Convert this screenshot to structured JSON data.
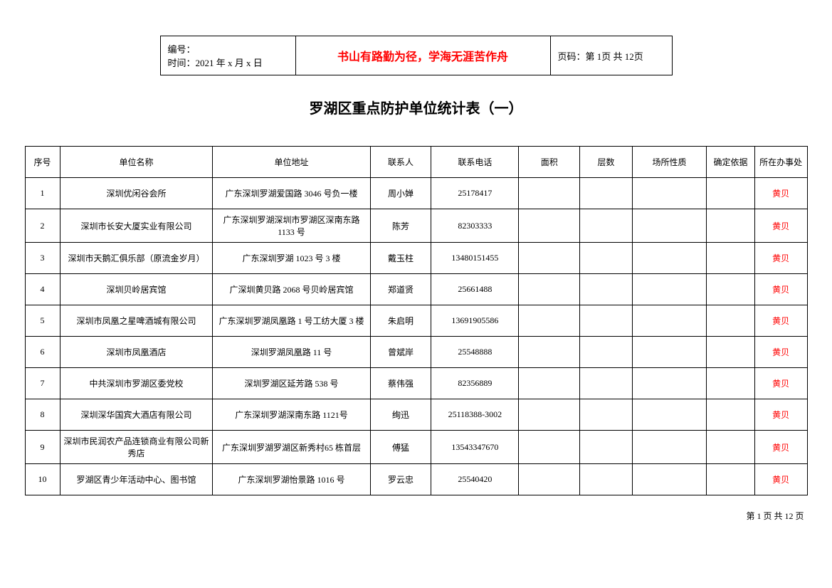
{
  "header": {
    "number_label": "编号：",
    "time_label": "时间：",
    "time_value": "2021 年 x 月 x 日",
    "motto": "书山有路勤为径，学海无涯苦作舟",
    "page_label": "页码：第 1页 共 12页"
  },
  "title": "罗湖区重点防护单位统计表（一）",
  "table": {
    "columns": [
      "序号",
      "单位名称",
      "单位地址",
      "联系人",
      "联系电话",
      "面积",
      "层数",
      "场所性质",
      "确定依据",
      "所在办事处"
    ],
    "rows": [
      {
        "seq": "1",
        "name": "深圳优闲谷会所",
        "addr": "广东深圳罗湖爱国路 3046 号负一楼",
        "contact": "周小婵",
        "phone": "25178417",
        "area": "",
        "floors": "",
        "type": "",
        "basis": "",
        "office": "黄贝"
      },
      {
        "seq": "2",
        "name": "深圳市长安大厦实业有限公司",
        "addr": "广东深圳罗湖深圳市罗湖区深南东路 1133 号",
        "contact": "陈芳",
        "phone": "82303333",
        "area": "",
        "floors": "",
        "type": "",
        "basis": "",
        "office": "黄贝"
      },
      {
        "seq": "3",
        "name": "深圳市天鹅汇俱乐部（原流金岁月）",
        "addr": "广东深圳罗湖 1023 号 3 楼",
        "contact": "戴玉柱",
        "phone": "13480151455",
        "area": "",
        "floors": "",
        "type": "",
        "basis": "",
        "office": "黄贝"
      },
      {
        "seq": "4",
        "name": "深圳贝岭居宾馆",
        "addr": "广深圳黄贝路 2068 号贝岭居宾馆",
        "contact": "郑道贤",
        "phone": "25661488",
        "area": "",
        "floors": "",
        "type": "",
        "basis": "",
        "office": "黄贝"
      },
      {
        "seq": "5",
        "name": "深圳市凤凰之星啤酒城有限公司",
        "addr": "广东深圳罗湖凤凰路 1 号工纺大厦 3 楼",
        "contact": "朱启明",
        "phone": "13691905586",
        "area": "",
        "floors": "",
        "type": "",
        "basis": "",
        "office": "黄贝"
      },
      {
        "seq": "6",
        "name": "深圳市凤凰酒店",
        "addr": "深圳罗湖凤凰路 11 号",
        "contact": "曾斌岸",
        "phone": "25548888",
        "area": "",
        "floors": "",
        "type": "",
        "basis": "",
        "office": "黄贝"
      },
      {
        "seq": "7",
        "name": "中共深圳市罗湖区委党校",
        "addr": "深圳罗湖区延芳路 538 号",
        "contact": "蔡伟强",
        "phone": "82356889",
        "area": "",
        "floors": "",
        "type": "",
        "basis": "",
        "office": "黄贝"
      },
      {
        "seq": "8",
        "name": "深圳深华国宾大酒店有限公司",
        "addr": "广东深圳罗湖深南东路 1121号",
        "contact": "绚迅",
        "phone": "25118388-3002",
        "area": "",
        "floors": "",
        "type": "",
        "basis": "",
        "office": "黄贝"
      },
      {
        "seq": "9",
        "name": "深圳市民润农产品连锁商业有限公司新秀店",
        "addr": "广东深圳罗湖罗湖区新秀村65 栋首层",
        "contact": "傅猛",
        "phone": "13543347670",
        "area": "",
        "floors": "",
        "type": "",
        "basis": "",
        "office": "黄贝"
      },
      {
        "seq": "10",
        "name": "罗湖区青少年活动中心、图书馆",
        "addr": "广东深圳罗湖怡景路 1016 号",
        "contact": "罗云忠",
        "phone": "25540420",
        "area": "",
        "floors": "",
        "type": "",
        "basis": "",
        "office": "黄贝"
      }
    ]
  },
  "footer": {
    "page_text": "第 1 页 共 12 页"
  },
  "styling": {
    "motto_color": "#ff0000",
    "office_color": "#ff0000",
    "border_color": "#000000",
    "background_color": "#ffffff",
    "title_fontsize": 20,
    "body_fontsize": 12
  }
}
